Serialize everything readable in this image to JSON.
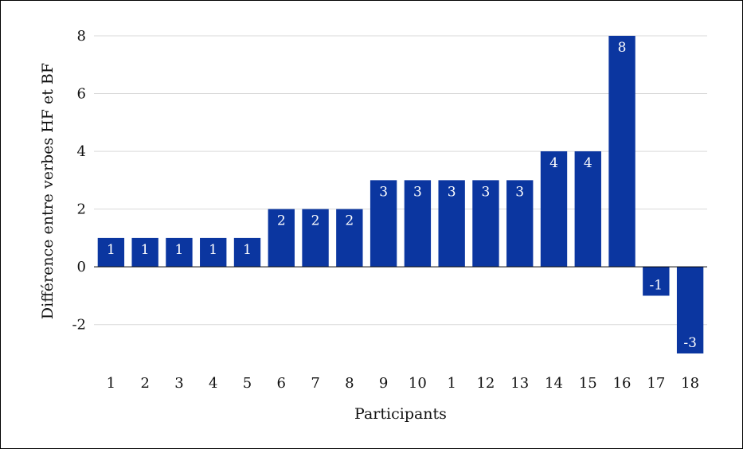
{
  "chart_data": {
    "type": "bar",
    "categories": [
      "1",
      "2",
      "3",
      "4",
      "5",
      "6",
      "7",
      "8",
      "9",
      "10",
      "1",
      "12",
      "13",
      "14",
      "15",
      "16",
      "17",
      "18"
    ],
    "values": [
      1,
      1,
      1,
      1,
      1,
      2,
      2,
      2,
      3,
      3,
      3,
      3,
      3,
      4,
      4,
      8,
      -1,
      -3
    ],
    "data_labels": [
      "1",
      "1",
      "1",
      "1",
      "1",
      "2",
      "2",
      "2",
      "3",
      "3",
      "3",
      "3",
      "3",
      "4",
      "4",
      "8",
      "-1",
      "-3"
    ],
    "xlabel": "Participants",
    "ylabel": "Différence entre verbes HF et BF",
    "ylim": [
      -3,
      8
    ],
    "yticks": [
      -2,
      0,
      2,
      4,
      6,
      8
    ],
    "grid": true,
    "legend": "none",
    "colors": {
      "bar": "#0b36a0",
      "grid": "#d9d9d9",
      "zero_line": "#000000"
    }
  }
}
